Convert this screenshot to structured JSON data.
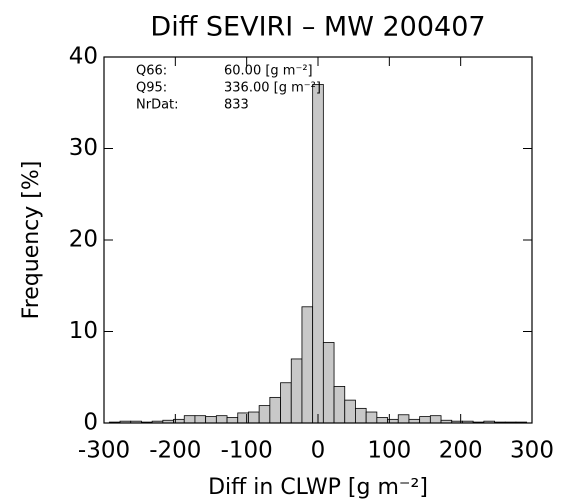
{
  "chart_data": {
    "type": "histogram",
    "title": "Diff SEVIRI – MW 200407",
    "xlabel": "Diff in CLWP  [g m⁻²]",
    "ylabel": "Frequency [%]",
    "bins": [
      -292.5,
      -277.5,
      -262.5,
      -247.5,
      -232.5,
      -217.5,
      -202.5,
      -187.5,
      -172.5,
      -157.5,
      -142.5,
      -127.5,
      -112.5,
      -97.5,
      -82.5,
      -67.5,
      -52.5,
      -37.5,
      -22.5,
      -7.5,
      7.5,
      22.5,
      37.5,
      52.5,
      67.5,
      82.5,
      97.5,
      112.5,
      127.5,
      142.5,
      157.5,
      172.5,
      187.5,
      202.5,
      217.5,
      232.5,
      247.5,
      262.5,
      277.5,
      292.5
    ],
    "values": [
      0.1,
      0.2,
      0.2,
      0.1,
      0.2,
      0.3,
      0.4,
      0.8,
      0.8,
      0.7,
      0.8,
      0.6,
      1.1,
      1.2,
      1.9,
      2.8,
      4.4,
      7.0,
      12.7,
      37.0,
      8.8,
      4.0,
      2.5,
      1.6,
      1.2,
      0.6,
      0.4,
      0.9,
      0.4,
      0.7,
      0.8,
      0.3,
      0.2,
      0.2,
      0.1,
      0.2,
      0.1,
      0.1,
      0.1
    ],
    "color": "#c8c8c8",
    "xlim": [
      -300,
      300
    ],
    "xticks": [
      -300,
      -200,
      -100,
      0,
      100,
      200,
      300
    ],
    "ylim": [
      0,
      40
    ],
    "yticks": [
      0,
      10,
      20,
      30,
      40
    ],
    "annotations": [
      {
        "label": "Q66:",
        "text": "60.00 [g m⁻²]"
      },
      {
        "label": "Q95:",
        "text": "336.00 [g m⁻²]"
      },
      {
        "label": "NrDat:",
        "text": "833"
      }
    ]
  }
}
